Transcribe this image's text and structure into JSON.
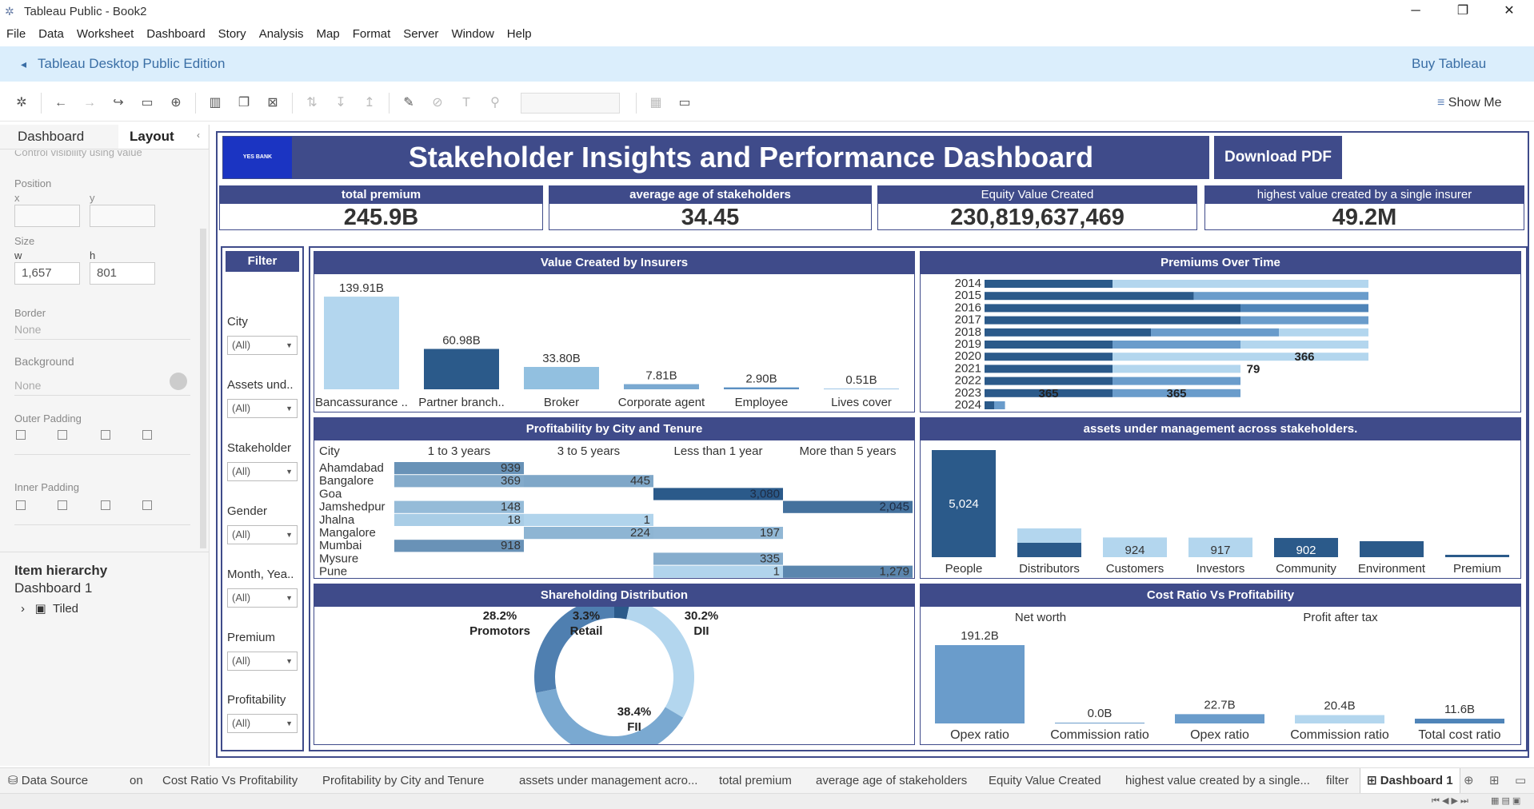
{
  "window": {
    "title": "Tableau Public - Book2",
    "minimize": "─",
    "maximize": "❐",
    "close": "✕"
  },
  "menu": [
    "File",
    "Data",
    "Worksheet",
    "Dashboard",
    "Story",
    "Analysis",
    "Map",
    "Format",
    "Server",
    "Window",
    "Help"
  ],
  "banner": {
    "edition": "Tableau Desktop Public Edition",
    "buy": "Buy Tableau"
  },
  "toolbar": {
    "show_me": "Show Me"
  },
  "left_panel": {
    "tabs": [
      "Dashboard",
      "Layout"
    ],
    "control_visibility": "Control visibility using value",
    "position_label": "Position",
    "x_label": "x",
    "y_label": "y",
    "size_label": "Size",
    "w_label": "w",
    "h_label": "h",
    "w_value": "1,657",
    "h_value": "801",
    "border_label": "Border",
    "border_value": "None",
    "background_label": "Background",
    "background_value": "None",
    "outer_padding_label": "Outer Padding",
    "inner_padding_label": "Inner Padding",
    "hierarchy_label": "Item hierarchy",
    "dashboard_item": "Dashboard 1",
    "tiled_item": "Tiled"
  },
  "dashboard": {
    "logo": "YES BANK",
    "title": "Stakeholder Insights and Performance Dashboard",
    "download": "Download PDF",
    "kpis": [
      {
        "label": "total premium",
        "value": "245.9B"
      },
      {
        "label": "average age of stakeholders",
        "value": "34.45"
      },
      {
        "label": "Equity Value Created",
        "value": "230,819,637,469"
      },
      {
        "label": "highest value created by a single insurer",
        "value": "49.2M"
      }
    ],
    "filter": {
      "title": "Filter",
      "items": [
        {
          "label": "City",
          "value": "(All)"
        },
        {
          "label": "Assets und..",
          "value": "(All)"
        },
        {
          "label": "Stakeholder",
          "value": "(All)"
        },
        {
          "label": "Gender",
          "value": "(All)"
        },
        {
          "label": "Month, Yea..",
          "value": "(All)"
        },
        {
          "label": "Premium",
          "value": "(All)"
        },
        {
          "label": "Profitability",
          "value": "(All)"
        }
      ]
    },
    "panels": {
      "value_created": "Value Created by Insurers",
      "premiums": "Premiums Over Time",
      "profitability": "Profitability by City and  Tenure",
      "aum": "assets under management across stakeholders.",
      "shareholding": "Shareholding Distribution",
      "cost_ratio": "Cost Ratio Vs Profitability"
    }
  },
  "chart_data": [
    {
      "type": "bar",
      "title": "Value Created by Insurers",
      "categories": [
        "Bancassurance ..",
        "Partner branch..",
        "Broker",
        "Corporate agent",
        "Employee",
        "Lives cover"
      ],
      "values": [
        139.91,
        60.98,
        33.8,
        7.81,
        2.9,
        0.51
      ],
      "labels": [
        "139.91B",
        "60.98B",
        "33.80B",
        "7.81B",
        "2.90B",
        "0.51B"
      ],
      "colors": [
        "#b3d6ee",
        "#2b5a8a",
        "#92c0e0",
        "#7aa9d1",
        "#5b8fc2",
        "#9ec6e6"
      ]
    },
    {
      "type": "bar",
      "title": "Premiums Over Time",
      "orientation": "horizontal",
      "categories": [
        "2014",
        "2015",
        "2016",
        "2017",
        "2018",
        "2019",
        "2020",
        "2021",
        "2022",
        "2023",
        "2024"
      ],
      "segments": [
        [
          {
            "v": 200,
            "c": "#2b5a8a"
          },
          {
            "v": 400,
            "c": "#b3d6ee"
          }
        ],
        [
          {
            "v": 327,
            "c": "#2b5a8a"
          },
          {
            "v": 273,
            "c": "#6a9ccb"
          }
        ],
        [
          {
            "v": 400,
            "c": "#2b5a8a"
          },
          {
            "v": 200,
            "c": "#4f84b8"
          }
        ],
        [
          {
            "v": 400,
            "c": "#2b5a8a"
          },
          {
            "v": 200,
            "c": "#6a9ccb"
          }
        ],
        [
          {
            "v": 260,
            "c": "#2b5a8a"
          },
          {
            "v": 200,
            "c": "#6a9ccb"
          },
          {
            "v": 140,
            "c": "#b3d6ee"
          }
        ],
        [
          {
            "v": 200,
            "c": "#2b5a8a"
          },
          {
            "v": 200,
            "c": "#6a9ccb"
          },
          {
            "v": 200,
            "c": "#b3d6ee"
          }
        ],
        [
          {
            "v": 200,
            "c": "#2b5a8a"
          },
          {
            "v": 200,
            "c": "#b3d6ee"
          },
          {
            "v": 200,
            "c": "#b3d6ee"
          }
        ],
        [
          {
            "v": 200,
            "c": "#2b5a8a"
          },
          {
            "v": 200,
            "c": "#b3d6ee"
          }
        ],
        [
          {
            "v": 200,
            "c": "#2b5a8a"
          },
          {
            "v": 200,
            "c": "#6a9ccb"
          }
        ],
        [
          {
            "v": 200,
            "c": "#2b5a8a"
          },
          {
            "v": 200,
            "c": "#6a9ccb"
          }
        ],
        [
          {
            "v": 15,
            "c": "#2b5a8a"
          },
          {
            "v": 17,
            "c": "#6a9ccb"
          }
        ]
      ],
      "annotations": [
        {
          "year": "2020",
          "text": "366",
          "at": 500
        },
        {
          "year": "2021",
          "text": "79",
          "at": 420
        },
        {
          "year": "2023",
          "text": "365",
          "at": 100
        },
        {
          "year": "2023",
          "text": "365",
          "at": 300
        }
      ]
    },
    {
      "type": "table",
      "title": "Profitability by City and  Tenure",
      "row_header": "City",
      "columns": [
        "1 to 3 years",
        "3 to 5 years",
        "Less than 1 year",
        "More than 5 years"
      ],
      "rows": [
        {
          "city": "Ahamdabad",
          "cells": [
            939,
            null,
            null,
            null
          ]
        },
        {
          "city": "Bangalore",
          "cells": [
            369,
            445,
            null,
            null
          ]
        },
        {
          "city": "Goa",
          "cells": [
            null,
            null,
            3080,
            null
          ]
        },
        {
          "city": "Jamshedpur",
          "cells": [
            148,
            null,
            null,
            2045
          ]
        },
        {
          "city": "Jhalna",
          "cells": [
            18,
            1,
            null,
            null
          ]
        },
        {
          "city": "Mangalore",
          "cells": [
            null,
            224,
            197,
            null
          ]
        },
        {
          "city": "Mumbai",
          "cells": [
            918,
            null,
            null,
            null
          ]
        },
        {
          "city": "Mysure",
          "cells": [
            null,
            null,
            335,
            null
          ]
        },
        {
          "city": "Pune",
          "cells": [
            null,
            null,
            1,
            1279
          ]
        }
      ],
      "display": [
        [
          "939",
          "",
          "",
          ""
        ],
        [
          "369",
          "445",
          "",
          ""
        ],
        [
          "",
          "",
          "3,080",
          ""
        ],
        [
          "148",
          "",
          "",
          "2,045"
        ],
        [
          "18",
          "1",
          "",
          ""
        ],
        [
          "",
          "224",
          "197",
          ""
        ],
        [
          "918",
          "",
          "",
          ""
        ],
        [
          "",
          "",
          "335",
          ""
        ],
        [
          "",
          "",
          "1",
          "1,279"
        ]
      ]
    },
    {
      "type": "bar",
      "title": "assets under management across stakeholders.",
      "categories": [
        "People",
        "Distributors",
        "Customers",
        "Investors",
        "Community",
        "Environment",
        "Premium"
      ],
      "values": [
        5024,
        null,
        924,
        917,
        902,
        null,
        null
      ],
      "labels": [
        "5,024",
        "",
        "924",
        "917",
        "902",
        "",
        ""
      ]
    },
    {
      "type": "pie",
      "title": "Shareholding Distribution",
      "slices": [
        {
          "name": "Promotors",
          "value": 28.2,
          "label": "28.2%"
        },
        {
          "name": "Retail",
          "value": 3.3,
          "label": "3.3%"
        },
        {
          "name": "DII",
          "value": 30.2,
          "label": "30.2%"
        },
        {
          "name": "FII",
          "value": 38.4,
          "label": "38.4%"
        }
      ]
    },
    {
      "type": "bar",
      "title": "Cost Ratio Vs Profitability",
      "groups": [
        {
          "name": "Net worth"
        },
        {
          "name": "Profit after tax"
        }
      ],
      "categories": [
        "Opex ratio",
        "Commission ratio",
        "Opex ratio",
        "Commission ratio",
        "Total cost ratio"
      ],
      "values": [
        191.2,
        0.0,
        22.7,
        20.4,
        11.6
      ],
      "labels": [
        "191.2B",
        "0.0B",
        "22.7B",
        "20.4B",
        "11.6B"
      ]
    }
  ],
  "bottom_tabs": [
    "Data Source",
    "on",
    "Cost Ratio Vs Profitability",
    "Profitability by City and  Tenure",
    "assets under management acro...",
    "total premium",
    "average age of stakeholders",
    "Equity Value Created",
    "highest value created by a single...",
    "filter",
    "Dashboard 1"
  ]
}
